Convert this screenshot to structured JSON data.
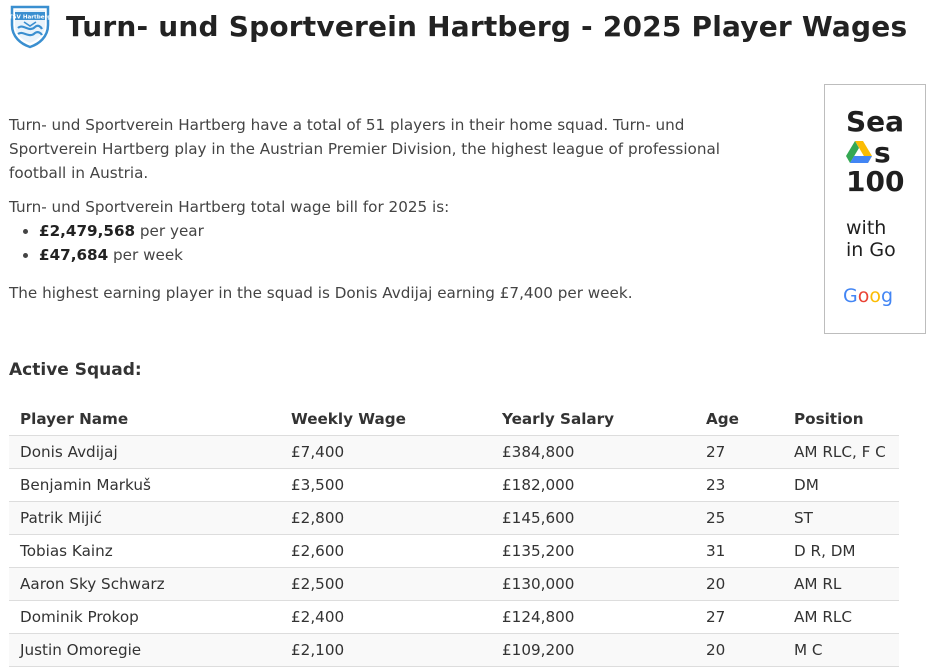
{
  "header": {
    "title": "Turn- und Sportverein Hartberg - 2025 Player Wages",
    "crest_icon": "club-crest-icon",
    "crest_text": "TSV Hartberg"
  },
  "intro": {
    "p1": "Turn- und Sportverein Hartberg have a total of 51 players in their home squad. Turn- und Sportverein Hartberg play in the Austrian Premier Division, the highest league of professional football in Austria.",
    "p2": "Turn- und Sportverein Hartberg total wage bill for 2025 is:",
    "year_amount": "£2,479,568",
    "year_suffix": " per year",
    "week_amount": "£47,684",
    "week_suffix": " per week",
    "p3": "The highest earning player in the squad is Donis Avdijaj earning £7,400 per week."
  },
  "ad": {
    "line1": "Sea",
    "line2": "s",
    "line3": "100",
    "line4": "with",
    "line5": "in Go",
    "brand": "Goog",
    "icon": "google-drive-icon"
  },
  "squad": {
    "heading": "Active Squad:",
    "columns": [
      "Player Name",
      "Weekly Wage",
      "Yearly Salary",
      "Age",
      "Position"
    ],
    "rows": [
      {
        "name": "Donis Avdijaj",
        "weekly": "£7,400",
        "yearly": "£384,800",
        "age": "27",
        "position": "AM RLC, F C"
      },
      {
        "name": "Benjamin Markuš",
        "weekly": "£3,500",
        "yearly": "£182,000",
        "age": "23",
        "position": "DM"
      },
      {
        "name": "Patrik Mijić",
        "weekly": "£2,800",
        "yearly": "£145,600",
        "age": "25",
        "position": "ST"
      },
      {
        "name": "Tobias Kainz",
        "weekly": "£2,600",
        "yearly": "£135,200",
        "age": "31",
        "position": "D R, DM"
      },
      {
        "name": "Aaron Sky Schwarz",
        "weekly": "£2,500",
        "yearly": "£130,000",
        "age": "20",
        "position": "AM RL"
      },
      {
        "name": "Dominik Prokop",
        "weekly": "£2,400",
        "yearly": "£124,800",
        "age": "27",
        "position": "AM RLC"
      },
      {
        "name": "Justin Omoregie",
        "weekly": "£2,100",
        "yearly": "£109,200",
        "age": "20",
        "position": "M C"
      }
    ]
  }
}
